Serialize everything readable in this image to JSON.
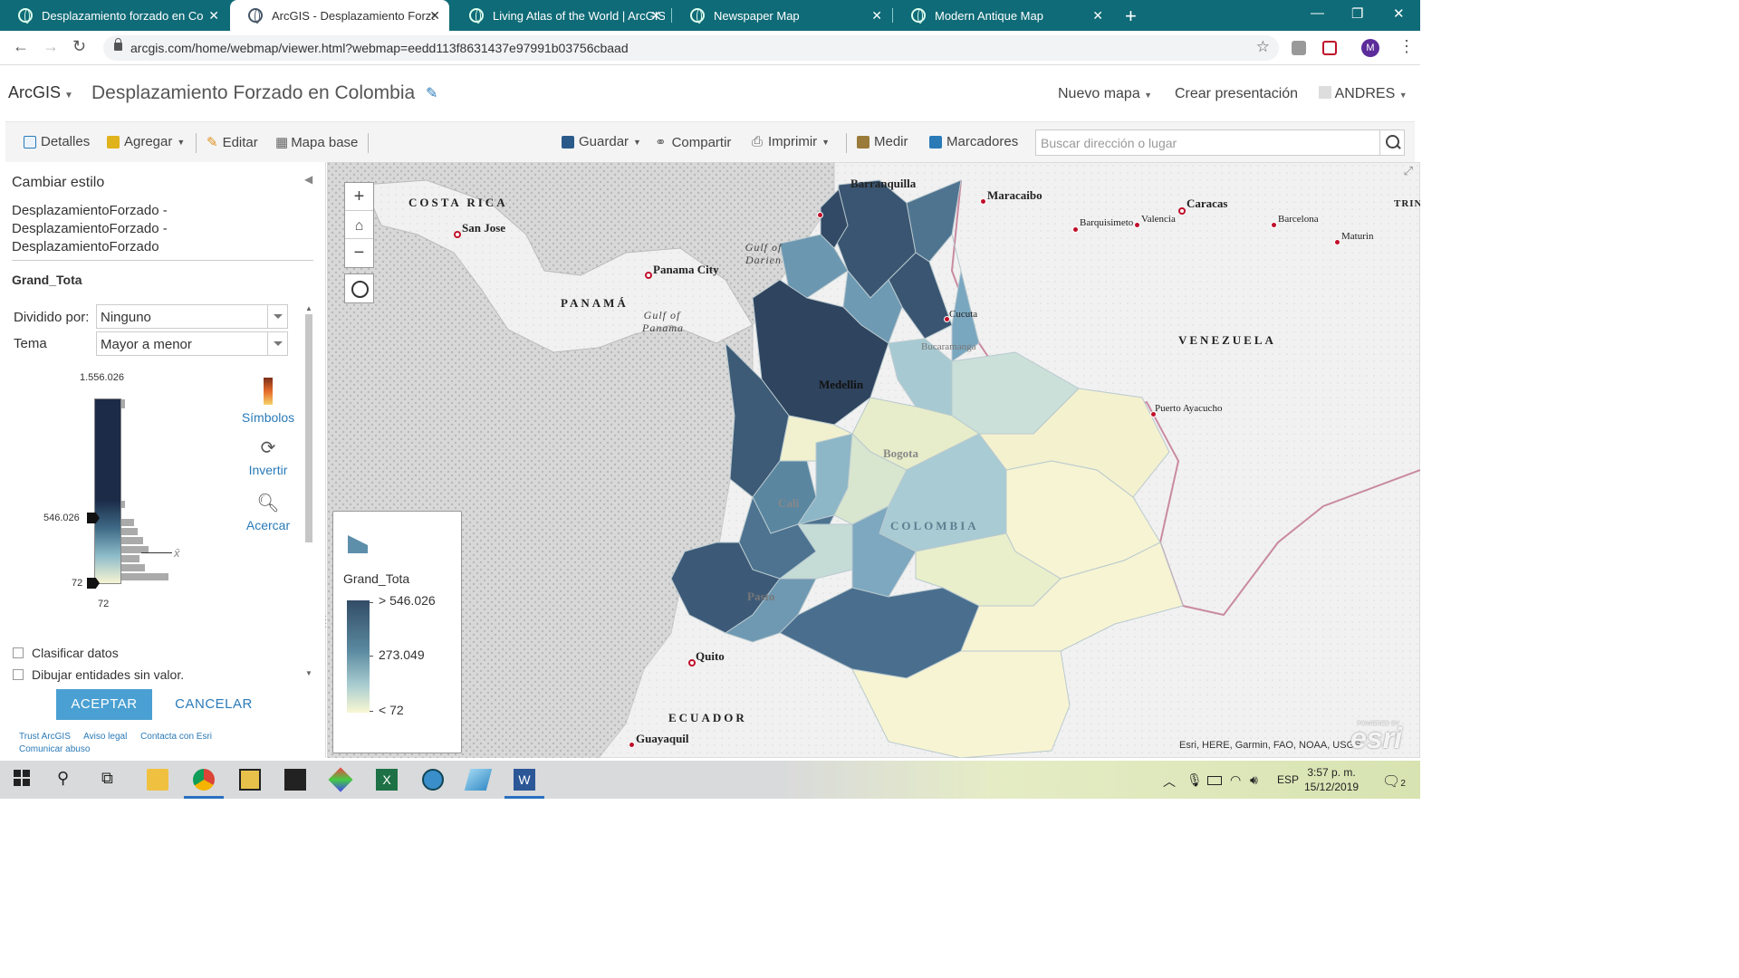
{
  "browser": {
    "tabs": [
      {
        "title": "Desplazamiento forzado en Colo",
        "active": false
      },
      {
        "title": "ArcGIS - Desplazamiento Forzado",
        "active": true
      },
      {
        "title": "Living Atlas of the World | ArcGIS",
        "active": false
      },
      {
        "title": "Newspaper Map",
        "active": false
      },
      {
        "title": "Modern Antique Map",
        "active": false
      }
    ],
    "url": "arcgis.com/home/webmap/viewer.html?webmap=eedd113f8631437e97991b03756cbaad",
    "profile_initial": "M"
  },
  "header": {
    "brand": "ArcGIS",
    "map_title": "Desplazamiento Forzado en Colombia",
    "new_map": "Nuevo mapa",
    "create_presentation": "Crear presentación",
    "user": "ANDRES"
  },
  "toolbar": {
    "details": "Detalles",
    "add": "Agregar",
    "edit": "Editar",
    "basemap": "Mapa base",
    "save": "Guardar",
    "share": "Compartir",
    "print": "Imprimir",
    "measure": "Medir",
    "bookmarks": "Marcadores",
    "search_placeholder": "Buscar dirección o lugar"
  },
  "panel": {
    "title": "Cambiar estilo",
    "layer_name_lines": [
      "DesplazamientoForzado -",
      "DesplazamientoForzado -",
      "DesplazamientoForzado"
    ],
    "field": "Grand_Tota",
    "divided_by_label": "Dividido por:",
    "divided_by_value": "Ninguno",
    "theme_label": "Tema",
    "theme_value": "Mayor a menor",
    "ramp_max": "1.556.026",
    "ramp_upper_handle": "546.026",
    "ramp_lower_handle": "72",
    "ramp_min": "72",
    "mean_symbol": "x̄",
    "symbols": "Símbolos",
    "invert": "Invertir",
    "zoom_in": "Acercar",
    "classify": "Clasificar datos",
    "draw_no_value": "Dibujar entidades sin valor.",
    "ok": "ACEPTAR",
    "cancel": "CANCELAR",
    "footer_links": [
      "Trust ArcGIS",
      "Aviso legal",
      "Contacta con Esri",
      "Comunicar abuso"
    ]
  },
  "legend": {
    "field": "Grand_Tota",
    "high": "> 546.026",
    "mid": "273.049",
    "low": "< 72"
  },
  "map_labels": {
    "countries": [
      "COSTA RICA",
      "PANAMÁ",
      "VENEZUELA",
      "COLOMBIA",
      "ECUADOR",
      "TRIN TOB"
    ],
    "seas": [
      "Gulf of Darien",
      "Gulf of Panama"
    ],
    "cities": [
      "Barranquilla",
      "Maracaibo",
      "Caracas",
      "Barquisimeto",
      "Valencia",
      "Barcelona",
      "Maturin",
      "San Jose",
      "Panama City",
      "Cucuta",
      "Bucaramanga",
      "Medellin",
      "Bogota",
      "Cali",
      "Pasto",
      "Puerto Ayacucho",
      "Quito",
      "Guayaquil"
    ],
    "attribution": "Esri, HERE, Garmin, FAO, NOAA, USGS",
    "esri_logo": "esri",
    "esri_powered": "POWERED BY"
  },
  "taskbar": {
    "lang": "ESP",
    "time": "3:57 p. m.",
    "date": "15/12/2019",
    "notifications": "2"
  },
  "colors": {
    "tabstrip": "#0f6b77",
    "accent": "#2a7ab8",
    "ok_button": "#4aa0d2",
    "ramp_dark": "#1b2b48",
    "ramp_light": "#f7f5d2"
  }
}
